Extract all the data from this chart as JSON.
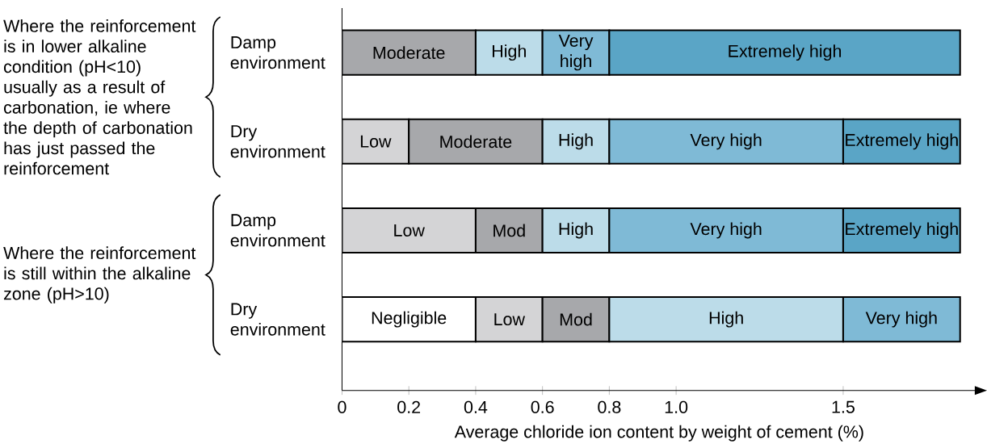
{
  "chart_data": {
    "type": "bar",
    "orientation": "horizontal",
    "stacked": true,
    "categories": [
      "Damp environment",
      "Dry environment",
      "Damp environment",
      "Dry environment"
    ],
    "series": [
      {
        "color": "#ffffff",
        "values": [
          null,
          null,
          null,
          0.4
        ],
        "value_labels": [
          null,
          null,
          null,
          "Negligible"
        ]
      },
      {
        "color": "#d4d4d6",
        "values": [
          null,
          0.2,
          0.4,
          0.2
        ],
        "value_labels": [
          null,
          "Low",
          "Low",
          "Low"
        ]
      },
      {
        "color": "#a7a8ab",
        "values": [
          0.4,
          0.4,
          0.2,
          0.2
        ],
        "value_labels": [
          "Moderate",
          "Moderate",
          "Mod",
          "Mod"
        ]
      },
      {
        "color": "#bcdce9",
        "values": [
          0.2,
          0.2,
          0.2,
          0.7
        ],
        "value_labels": [
          "High",
          "High",
          "High",
          "High"
        ]
      },
      {
        "color": "#7fbad6",
        "values": [
          0.2,
          0.7,
          0.7,
          0.35
        ],
        "value_labels": [
          "Very high",
          "Very high",
          "Very high",
          "Very high"
        ]
      },
      {
        "color": "#5aa5c6",
        "values": [
          1.05,
          0.35,
          0.35,
          null
        ],
        "value_labels": [
          "Extremely high",
          "Extremely high",
          "Extremely high",
          null
        ]
      }
    ],
    "xlim": [
      0,
      1.9
    ],
    "xticks": [
      0,
      0.2,
      0.4,
      0.6,
      0.8,
      {
        "value": 1.0,
        "label": "1.0"
      },
      1.5
    ],
    "xlabel": "Average chloride ion content by weight of cement (%)",
    "annotations": [
      "Where the reinforcement is in lower alkaline condition (pH<10) usually as a result of carbonation, ie where the depth of carbonation has just passed the reinforcement",
      "Where the reinforcement is still within the alkaline zone (pH>10)"
    ]
  }
}
